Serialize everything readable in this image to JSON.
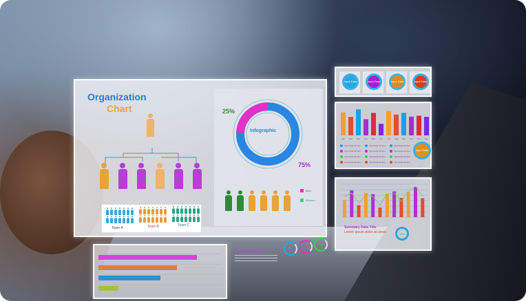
{
  "org_chart": {
    "title_line1": "Organization",
    "title_line2": "Chart",
    "teams": [
      "Team A",
      "Team B",
      "Team C"
    ],
    "top_color": "#f0b36a",
    "row_colors": [
      "#e9a23a",
      "#b63fd6",
      "#b63fd6",
      "#f0b36a",
      "#b63fd6",
      "#b63fd6"
    ],
    "team_colors": [
      "#3aa9d6",
      "#e99a3a",
      "#2aa58a"
    ]
  },
  "infographic": {
    "label": "Infographic",
    "pct_a": "25%",
    "pct_b": "75%",
    "values": [
      25,
      75
    ],
    "colors": [
      "#e032c8",
      "#2a86e0"
    ],
    "legend": [
      "Men",
      "Women"
    ],
    "people_colors": [
      "#2e8b3a",
      "#2e8b3a",
      "#e9a23a",
      "#e9a23a",
      "#e9a23a",
      "#e9a23a"
    ]
  },
  "input_circles": {
    "labels": [
      "Input Data",
      "Input Data",
      "Input Data",
      "Input Data"
    ],
    "colors": [
      "#2aa6e0",
      "#a51fd0",
      "#e08a1a",
      "#d8401a"
    ]
  },
  "monthly_bars": {
    "months": [
      "Jan",
      "Feb",
      "Mar",
      "Apr",
      "May",
      "Jun",
      "Jul",
      "Aug",
      "Sep",
      "Oct",
      "Nov",
      "Dec"
    ],
    "values": [
      80,
      64,
      90,
      56,
      78,
      40,
      85,
      72,
      78,
      65,
      68,
      64
    ],
    "colors": [
      "#f0a030",
      "#e0502a",
      "#1ea0e0",
      "#a030d0",
      "#e02a3a",
      "#7a2ae0",
      "#f0a030",
      "#e0502a",
      "#1ea0e0",
      "#a030d0",
      "#e02a3a",
      "#7a2ae0"
    ],
    "legend_text": "Input data all here",
    "circle_label": "Input Data"
  },
  "combo_chart": {
    "values": [
      50,
      78,
      35,
      70,
      67,
      28,
      68,
      75,
      56,
      74,
      88,
      55
    ],
    "colors": [
      "#f0a030",
      "#b030d0",
      "#e0502a",
      "#f0a030",
      "#b030d0",
      "#e0502a",
      "#f0a030",
      "#b030d0",
      "#e0502a",
      "#f0a030",
      "#b030d0",
      "#e0502a"
    ],
    "line": [
      60,
      70,
      40,
      65,
      60,
      35,
      68,
      70,
      45,
      75,
      90,
      60
    ],
    "title": "Summary Data Title",
    "subtitle": "Lorem ipsum dolor sit amet.",
    "ring_label": "30%"
  },
  "bottom": {
    "bars": [
      100,
      80,
      63,
      20
    ],
    "colors": [
      "#d844d8",
      "#e87a3a",
      "#2a92d6",
      "#a6c23a"
    ],
    "summary_title": "Summary Data Title",
    "rings": [
      {
        "label": "30%",
        "color": "#2aa6e0"
      },
      {
        "label": "60%",
        "color": "#e032c8"
      },
      {
        "label": "25%",
        "color": "#3ad04a"
      }
    ]
  }
}
